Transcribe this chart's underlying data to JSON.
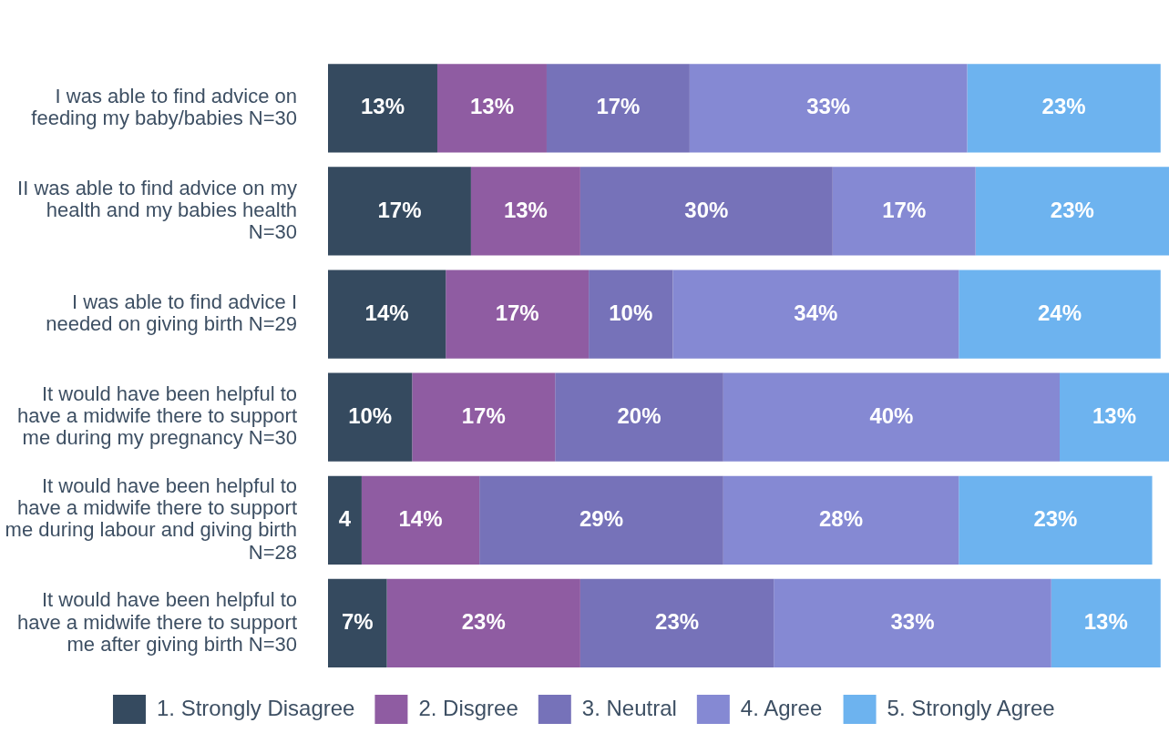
{
  "chart_data": {
    "type": "bar",
    "orientation": "horizontal",
    "stacked": true,
    "legend": "bottom",
    "categories": [
      "I was able to find advice on feeding my baby/babies N=30",
      "II was able to find advice on my health and my babies health N=30",
      "I was able to find advice I needed on giving birth N=29",
      "It would have been helpful to have a midwife there to support me during my pregnancy N=30",
      "It would have been helpful to have a midwife there to support me during labour and giving birth N=28",
      "It would have been helpful to have a midwife there to support me after giving birth N=30"
    ],
    "series": [
      {
        "name": "1. Strongly Disagree",
        "color": "#354a5f",
        "values": [
          13,
          17,
          14,
          10,
          4,
          7
        ],
        "value_labels": [
          "13%",
          "17%",
          "14%",
          "10%",
          "4",
          "7%"
        ]
      },
      {
        "name": "2. Disgree",
        "color": "#8f5ca2",
        "values": [
          13,
          13,
          17,
          17,
          14,
          23
        ],
        "value_labels": [
          "13%",
          "13%",
          "17%",
          "17%",
          "14%",
          "23%"
        ]
      },
      {
        "name": "3. Neutral",
        "color": "#7672b9",
        "values": [
          17,
          30,
          10,
          20,
          29,
          23
        ],
        "value_labels": [
          "17%",
          "30%",
          "10%",
          "20%",
          "29%",
          "23%"
        ]
      },
      {
        "name": "4. Agree",
        "color": "#8589d3",
        "values": [
          33,
          17,
          34,
          40,
          28,
          33
        ],
        "value_labels": [
          "33%",
          "17%",
          "34%",
          "40%",
          "28%",
          "33%"
        ]
      },
      {
        "name": "5. Strongly Agree",
        "color": "#6db3ef",
        "values": [
          23,
          23,
          24,
          13,
          23,
          13
        ],
        "value_labels": [
          "23%",
          "23%",
          "24%",
          "13%",
          "23%",
          "13%"
        ]
      }
    ]
  }
}
